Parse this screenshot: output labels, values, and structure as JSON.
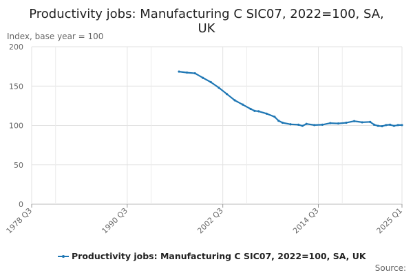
{
  "chart_data": {
    "type": "line",
    "title_lines": [
      "Productivity jobs: Manufacturing C SIC07, 2022=100, SA,",
      "UK"
    ],
    "ylabel": "Index, base year = 100",
    "ylim": [
      0,
      200
    ],
    "yticks": [
      "0",
      "50",
      "100",
      "150",
      "200"
    ],
    "xlim": [
      1978.5,
      2025.0
    ],
    "xticks": [
      {
        "label": "1978 Q3",
        "t": 1978.5
      },
      {
        "label": "1990 Q3",
        "t": 1990.5
      },
      {
        "label": "2002 Q3",
        "t": 2002.5
      },
      {
        "label": "2014 Q3",
        "t": 2014.5
      },
      {
        "label": "2025 Q1",
        "t": 2025.0
      }
    ],
    "minor_gridlines_t": [
      1981.5,
      1993.5,
      2005.5,
      2017.5
    ],
    "grid": true,
    "legend_position": "bottom",
    "series": [
      {
        "name": "Productivity jobs: Manufacturing C SIC07, 2022=100, SA, UK",
        "color": "#1f77b4",
        "points": [
          {
            "t": 1997.0,
            "y": 168.5
          },
          {
            "t": 1998.0,
            "y": 167.2
          },
          {
            "t": 1999.0,
            "y": 166.3
          },
          {
            "t": 2000.0,
            "y": 160.5
          },
          {
            "t": 2001.0,
            "y": 155.0
          },
          {
            "t": 2002.0,
            "y": 148.0
          },
          {
            "t": 2003.0,
            "y": 140.0
          },
          {
            "t": 2004.0,
            "y": 132.0
          },
          {
            "t": 2005.0,
            "y": 126.5
          },
          {
            "t": 2006.0,
            "y": 121.0
          },
          {
            "t": 2006.5,
            "y": 118.5
          },
          {
            "t": 2007.0,
            "y": 118.0
          },
          {
            "t": 2008.0,
            "y": 115.0
          },
          {
            "t": 2009.0,
            "y": 111.0
          },
          {
            "t": 2009.5,
            "y": 106.0
          },
          {
            "t": 2010.0,
            "y": 103.5
          },
          {
            "t": 2011.0,
            "y": 101.5
          },
          {
            "t": 2012.0,
            "y": 101.0
          },
          {
            "t": 2012.5,
            "y": 99.5
          },
          {
            "t": 2013.0,
            "y": 102.0
          },
          {
            "t": 2014.0,
            "y": 100.5
          },
          {
            "t": 2015.0,
            "y": 101.0
          },
          {
            "t": 2016.0,
            "y": 103.0
          },
          {
            "t": 2017.0,
            "y": 102.5
          },
          {
            "t": 2018.0,
            "y": 103.5
          },
          {
            "t": 2019.0,
            "y": 105.5
          },
          {
            "t": 2020.0,
            "y": 104.0
          },
          {
            "t": 2021.0,
            "y": 104.5
          },
          {
            "t": 2021.5,
            "y": 101.0
          },
          {
            "t": 2022.0,
            "y": 99.5
          },
          {
            "t": 2022.5,
            "y": 99.0
          },
          {
            "t": 2023.0,
            "y": 100.5
          },
          {
            "t": 2023.5,
            "y": 101.0
          },
          {
            "t": 2024.0,
            "y": 99.5
          },
          {
            "t": 2024.5,
            "y": 100.5
          },
          {
            "t": 2025.0,
            "y": 100.5
          }
        ]
      }
    ]
  },
  "source_label": "Source:"
}
